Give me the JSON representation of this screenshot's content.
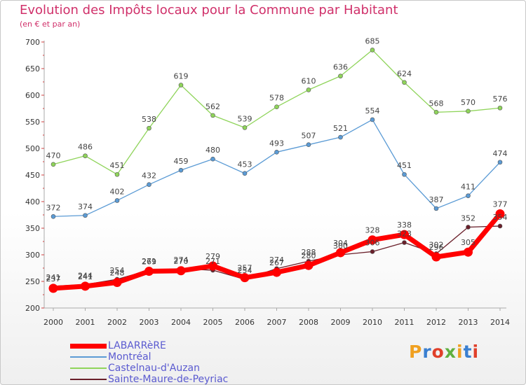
{
  "title": "Evolution des Impôts locaux pour la Commune par Habitant",
  "subtitle": "(en € et par an)",
  "logo_text": "Proxiti",
  "chart_data": {
    "type": "line",
    "title": "Evolution des Impôts locaux pour la Commune par Habitant",
    "subtitle": "(en € et par an)",
    "xlabel": "",
    "ylabel": "",
    "x": [
      "2000",
      "2001",
      "2002",
      "2003",
      "2004",
      "2005",
      "2006",
      "2007",
      "2008",
      "2009",
      "2010",
      "2011",
      "2012",
      "2013",
      "2014"
    ],
    "ylim": [
      200,
      700
    ],
    "yticks": [
      200,
      250,
      300,
      350,
      400,
      450,
      500,
      550,
      600,
      650,
      700
    ],
    "grid": false,
    "legend_position": "bottom-left",
    "series": [
      {
        "name": "LABARRèRE",
        "color": "#ff0000",
        "values": [
          237,
          241,
          248,
          269,
          270,
          279,
          257,
          267,
          280,
          304,
          328,
          338,
          296,
          305,
          377
        ]
      },
      {
        "name": "Montréal",
        "color": "#5b9bd5",
        "values": [
          372,
          374,
          402,
          432,
          459,
          480,
          453,
          493,
          507,
          521,
          554,
          451,
          387,
          411,
          474
        ]
      },
      {
        "name": "Castelnau-d'Auzan",
        "color": "#8fd45a",
        "values": [
          470,
          486,
          451,
          538,
          619,
          562,
          539,
          578,
          610,
          636,
          685,
          624,
          568,
          570,
          576
        ]
      },
      {
        "name": "Sainte-Maure-de-Peyriac",
        "color": "#6a1f2a",
        "values": [
          241,
          244,
          254,
          271,
          274,
          271,
          254,
          274,
          288,
          300,
          306,
          323,
          302,
          352,
          354
        ]
      }
    ]
  }
}
